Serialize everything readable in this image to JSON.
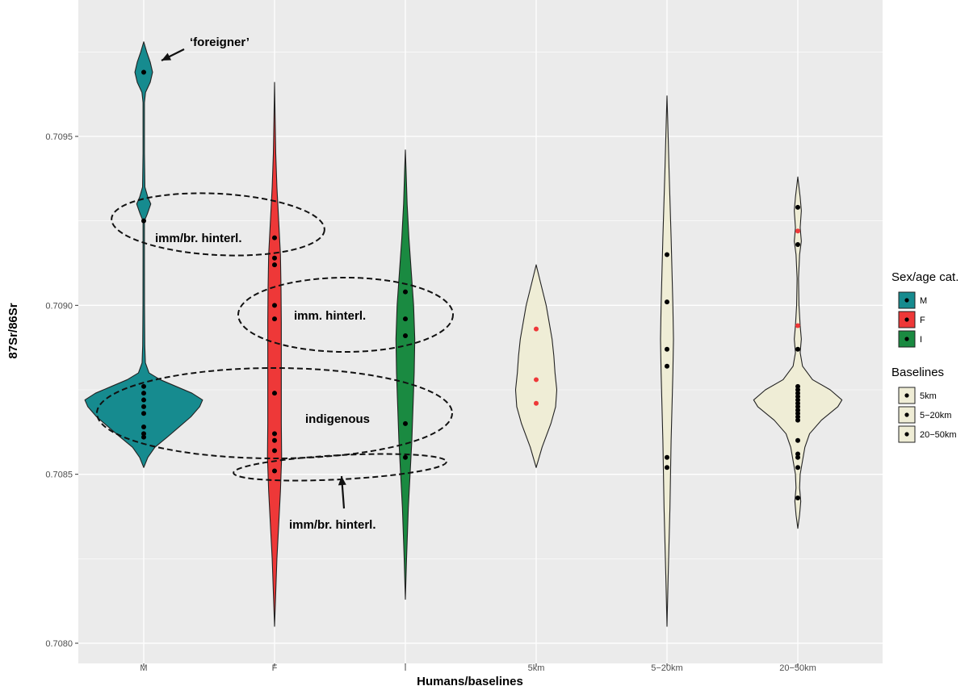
{
  "chart_data": {
    "type": "violin",
    "xlabel": "Humans/baselines",
    "ylabel": "87Sr/86Sr",
    "ylim": [
      0.70797,
      0.70985
    ],
    "yticks": [
      0.708,
      0.7085,
      0.709,
      0.7095
    ],
    "ytick_labels": [
      "0.7080",
      "0.7085",
      "0.7090",
      "0.7095"
    ],
    "grid": true,
    "categories": [
      "M",
      "F",
      "I",
      "5km",
      "5-20km",
      "20-50km"
    ],
    "category_labels": [
      "M",
      "F",
      "I",
      "5km",
      "5−20km",
      "20−50km"
    ],
    "colors": {
      "M": "#168b8f",
      "F": "#ee3838",
      "I": "#1a8a41",
      "baseline": "#efedd6",
      "panel": "#ebebeb",
      "grid": "#ffffff",
      "point_black": "#000000",
      "point_red": "#ee3838"
    },
    "series": [
      {
        "category": "M",
        "fill": "M",
        "profile": [
          [
            0.70852,
            0
          ],
          [
            0.70855,
            0.07
          ],
          [
            0.70858,
            0.19
          ],
          [
            0.70861,
            0.4
          ],
          [
            0.70864,
            0.6
          ],
          [
            0.70867,
            0.8
          ],
          [
            0.7087,
            0.95
          ],
          [
            0.70872,
            1.0
          ],
          [
            0.70874,
            0.82
          ],
          [
            0.70876,
            0.55
          ],
          [
            0.70878,
            0.28
          ],
          [
            0.7088,
            0.09
          ],
          [
            0.70883,
            0.028
          ],
          [
            0.70888,
            0.018
          ],
          [
            0.709,
            0.013
          ],
          [
            0.70915,
            0.012
          ],
          [
            0.70925,
            0.012
          ],
          [
            0.70927,
            0.06
          ],
          [
            0.7093,
            0.12
          ],
          [
            0.70932,
            0.07
          ],
          [
            0.70935,
            0.02
          ],
          [
            0.70945,
            0.012
          ],
          [
            0.7096,
            0.012
          ],
          [
            0.70963,
            0.03
          ],
          [
            0.70966,
            0.11
          ],
          [
            0.70969,
            0.15
          ],
          [
            0.70972,
            0.11
          ],
          [
            0.70975,
            0.05
          ],
          [
            0.70978,
            0
          ]
        ],
        "points": [
          0.70969,
          0.70925,
          0.70876,
          0.70874,
          0.70872,
          0.7087,
          0.70868,
          0.70864,
          0.70862,
          0.70861
        ],
        "point_colors": [
          "black",
          "black",
          "black",
          "black",
          "black",
          "black",
          "black",
          "black",
          "black",
          "black"
        ]
      },
      {
        "category": "F",
        "fill": "F",
        "profile": [
          [
            0.70805,
            0
          ],
          [
            0.70815,
            0.02
          ],
          [
            0.70825,
            0.04
          ],
          [
            0.70835,
            0.07
          ],
          [
            0.70845,
            0.1
          ],
          [
            0.70855,
            0.12
          ],
          [
            0.70865,
            0.115
          ],
          [
            0.70875,
            0.115
          ],
          [
            0.70885,
            0.115
          ],
          [
            0.70895,
            0.115
          ],
          [
            0.70905,
            0.11
          ],
          [
            0.70915,
            0.1
          ],
          [
            0.70925,
            0.07
          ],
          [
            0.70935,
            0.04
          ],
          [
            0.70945,
            0.02
          ],
          [
            0.70955,
            0.01
          ],
          [
            0.70966,
            0
          ]
        ],
        "points": [
          0.7092,
          0.70914,
          0.70912,
          0.709,
          0.70896,
          0.70874,
          0.70862,
          0.7086,
          0.70857,
          0.70851
        ],
        "point_colors": [
          "black",
          "black",
          "black",
          "black",
          "black",
          "black",
          "black",
          "black",
          "black",
          "black"
        ]
      },
      {
        "category": "I",
        "fill": "I",
        "profile": [
          [
            0.70813,
            0
          ],
          [
            0.70825,
            0.02
          ],
          [
            0.7084,
            0.05
          ],
          [
            0.7085,
            0.08
          ],
          [
            0.7086,
            0.11
          ],
          [
            0.7087,
            0.13
          ],
          [
            0.7088,
            0.15
          ],
          [
            0.7089,
            0.16
          ],
          [
            0.709,
            0.14
          ],
          [
            0.7091,
            0.1
          ],
          [
            0.7092,
            0.06
          ],
          [
            0.7093,
            0.03
          ],
          [
            0.7094,
            0.012
          ],
          [
            0.70946,
            0
          ]
        ],
        "points": [
          0.70904,
          0.70896,
          0.70891,
          0.70865,
          0.70855
        ],
        "point_colors": [
          "black",
          "black",
          "black",
          "black",
          "black"
        ]
      },
      {
        "category": "5km",
        "fill": "baseline",
        "profile": [
          [
            0.70852,
            0
          ],
          [
            0.70858,
            0.1
          ],
          [
            0.70865,
            0.25
          ],
          [
            0.7087,
            0.33
          ],
          [
            0.70875,
            0.35
          ],
          [
            0.7088,
            0.32
          ],
          [
            0.70885,
            0.3
          ],
          [
            0.7089,
            0.27
          ],
          [
            0.709,
            0.17
          ],
          [
            0.70907,
            0.07
          ],
          [
            0.70912,
            0
          ]
        ],
        "points": [
          0.70893,
          0.70878,
          0.70871
        ],
        "point_colors": [
          "red",
          "red",
          "red"
        ]
      },
      {
        "category": "5-20km",
        "fill": "baseline",
        "profile": [
          [
            0.70805,
            0
          ],
          [
            0.7082,
            0.02
          ],
          [
            0.7084,
            0.05
          ],
          [
            0.7086,
            0.07
          ],
          [
            0.7088,
            0.1
          ],
          [
            0.7089,
            0.11
          ],
          [
            0.709,
            0.1
          ],
          [
            0.7092,
            0.07
          ],
          [
            0.7094,
            0.035
          ],
          [
            0.70955,
            0.012
          ],
          [
            0.70962,
            0
          ]
        ],
        "points": [
          0.70915,
          0.70901,
          0.70887,
          0.70882,
          0.70855,
          0.70852
        ],
        "point_colors": [
          "black",
          "black",
          "black",
          "black",
          "black",
          "black"
        ]
      },
      {
        "category": "20-50km",
        "fill": "baseline",
        "profile": [
          [
            0.70834,
            0
          ],
          [
            0.70838,
            0.03
          ],
          [
            0.70842,
            0.05
          ],
          [
            0.70846,
            0.03
          ],
          [
            0.7085,
            0.04
          ],
          [
            0.70854,
            0.08
          ],
          [
            0.70858,
            0.12
          ],
          [
            0.70862,
            0.2
          ],
          [
            0.70866,
            0.4
          ],
          [
            0.7087,
            0.68
          ],
          [
            0.70872,
            0.75
          ],
          [
            0.70875,
            0.55
          ],
          [
            0.70878,
            0.25
          ],
          [
            0.70882,
            0.08
          ],
          [
            0.70886,
            0.04
          ],
          [
            0.7089,
            0.06
          ],
          [
            0.70894,
            0.04
          ],
          [
            0.709,
            0.02
          ],
          [
            0.70908,
            0.012
          ],
          [
            0.70915,
            0.03
          ],
          [
            0.70919,
            0.06
          ],
          [
            0.70923,
            0.04
          ],
          [
            0.70928,
            0.06
          ],
          [
            0.70932,
            0.04
          ],
          [
            0.70938,
            0
          ]
        ],
        "points": [
          0.70929,
          0.70922,
          0.70918,
          0.70894,
          0.70887,
          0.70876,
          0.70875,
          0.70874,
          0.70873,
          0.70872,
          0.70871,
          0.7087,
          0.70869,
          0.70868,
          0.70867,
          0.70866,
          0.7086,
          0.70856,
          0.70855,
          0.70852,
          0.70843
        ],
        "point_colors": [
          "black",
          "red",
          "black",
          "red",
          "black",
          "black",
          "black",
          "black",
          "black",
          "black",
          "black",
          "black",
          "black",
          "black",
          "black",
          "black",
          "black",
          "black",
          "black",
          "black",
          "black"
        ]
      }
    ],
    "annotations": [
      {
        "text": "‘foreigner’",
        "category": "M",
        "y": 0.70969,
        "kind": "arrow-label"
      },
      {
        "text": "imm/br. hinterl.",
        "category": "M",
        "y": 0.70921,
        "kind": "ellipse-label"
      },
      {
        "text": "imm. hinterl.",
        "category": "F",
        "y": 0.70897,
        "kind": "ellipse-label"
      },
      {
        "text": "indigenous",
        "category": "F",
        "y": 0.70868,
        "kind": "ellipse-label"
      },
      {
        "text": "imm/br. hinterl.",
        "category": "F",
        "y": 0.70852,
        "kind": "arrow-label"
      }
    ],
    "legend": {
      "placement": "right",
      "groups": [
        {
          "title": "Sex/age cat.",
          "entries": [
            {
              "label": "M",
              "fill": "M"
            },
            {
              "label": "F",
              "fill": "F"
            },
            {
              "label": "I",
              "fill": "I"
            }
          ]
        },
        {
          "title": "Baselines",
          "entries": [
            {
              "label": "5km",
              "fill": "baseline"
            },
            {
              "label": "5−20km",
              "fill": "baseline"
            },
            {
              "label": "20−50km",
              "fill": "baseline"
            }
          ]
        }
      ]
    }
  }
}
